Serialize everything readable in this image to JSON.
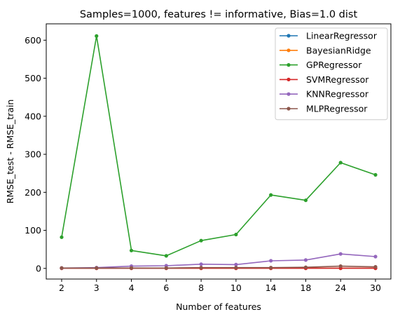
{
  "chart_data": {
    "type": "line",
    "title": "Samples=1000, features != informative, Bias=1.0 dist",
    "xlabel": "Number of features",
    "ylabel": "RMSE_test - RMSE_train",
    "categories": [
      "2",
      "3",
      "4",
      "6",
      "8",
      "10",
      "14",
      "18",
      "24",
      "30"
    ],
    "ylim": [
      -28,
      643
    ],
    "yticks": [
      0,
      100,
      200,
      300,
      400,
      500,
      600
    ],
    "grid": false,
    "legend_position": "top-right",
    "series": [
      {
        "name": "LinearRegressor",
        "color": "#1f77b4",
        "values": [
          0.5,
          0.5,
          0.5,
          0.5,
          0.5,
          0.5,
          0.5,
          0.5,
          0.5,
          0.5
        ]
      },
      {
        "name": "BayesianRidge",
        "color": "#ff7f0e",
        "values": [
          0.5,
          0.5,
          0.5,
          0.5,
          0.5,
          0.5,
          0.5,
          0.5,
          0.5,
          0.5
        ]
      },
      {
        "name": "GPRegressor",
        "color": "#2ca02c",
        "values": [
          82,
          611,
          47,
          33,
          73,
          89,
          193,
          179,
          278,
          246
        ]
      },
      {
        "name": "SVMRegressor",
        "color": "#d62728",
        "values": [
          0.3,
          0.3,
          0.3,
          0.3,
          0.3,
          0.3,
          0.3,
          0.3,
          0.3,
          0.3
        ]
      },
      {
        "name": "KNNRegressor",
        "color": "#9467bd",
        "values": [
          1,
          2,
          6,
          7,
          11,
          10,
          20,
          22,
          38,
          31
        ]
      },
      {
        "name": "MLPRegressor",
        "color": "#8c564b",
        "values": [
          1,
          1,
          1,
          1,
          2,
          2,
          2,
          3,
          6,
          4
        ]
      }
    ]
  }
}
